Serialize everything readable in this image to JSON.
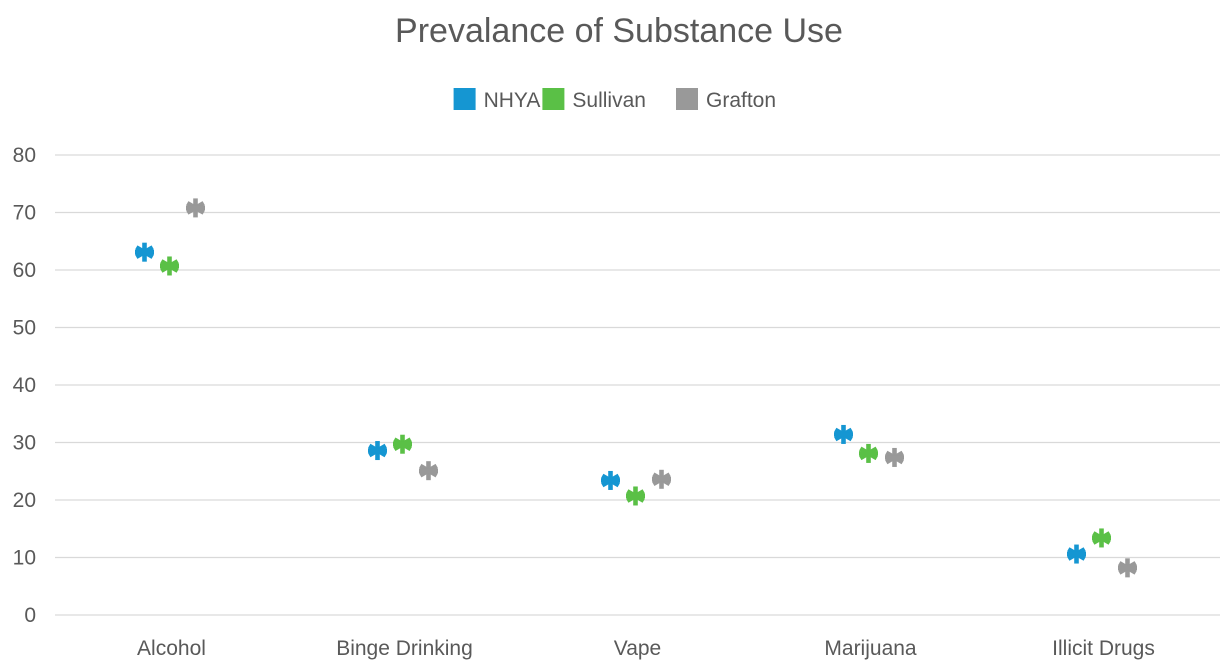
{
  "chart_data": {
    "type": "scatter",
    "title": "Prevalance of Substance Use",
    "xlabel": "",
    "ylabel": "",
    "categories": [
      "Alcohol",
      "Binge Drinking",
      "Vape",
      "Marijuana",
      "Illicit Drugs"
    ],
    "ylim": [
      0,
      80
    ],
    "yticks": [
      "0",
      "10",
      "20",
      "30",
      "40",
      "50",
      "60",
      "70",
      "80"
    ],
    "grid": true,
    "legend_position": "top",
    "marker": "asterisk",
    "series": [
      {
        "name": "NHYA",
        "color": "#1596d2",
        "values": [
          63.1,
          28.6,
          23.4,
          31.4,
          10.6
        ]
      },
      {
        "name": "Sullivan",
        "color": "#5ac046",
        "values": [
          60.7,
          29.7,
          20.7,
          28.1,
          13.4
        ]
      },
      {
        "name": "Grafton",
        "color": "#999999",
        "values": [
          70.8,
          25.1,
          23.6,
          27.4,
          8.2
        ]
      }
    ]
  }
}
